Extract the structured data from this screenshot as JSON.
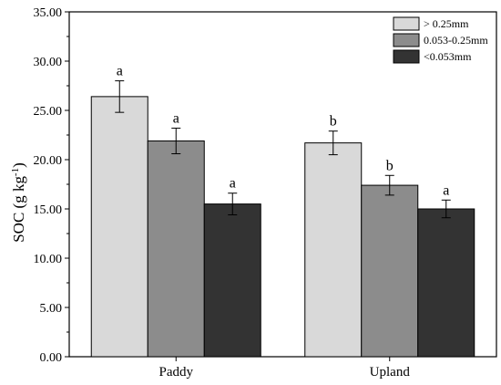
{
  "chart_data": {
    "type": "bar",
    "categories": [
      "Paddy",
      "Upland"
    ],
    "series": [
      {
        "name": "> 0.25mm",
        "color": "#d9d9d9",
        "values": [
          26.4,
          21.7
        ],
        "errors": [
          1.6,
          1.2
        ],
        "letters": [
          "a",
          "b"
        ]
      },
      {
        "name": "0.053-0.25mm",
        "color": "#8c8c8c",
        "values": [
          21.9,
          17.4
        ],
        "errors": [
          1.3,
          1.0
        ],
        "letters": [
          "a",
          "b"
        ]
      },
      {
        "name": "<0.053mm",
        "color": "#333333",
        "values": [
          15.5,
          15.0
        ],
        "errors": [
          1.1,
          0.9
        ],
        "letters": [
          "a",
          "a"
        ]
      }
    ],
    "ylabel": "SOC (g kg",
    "ylabel_sup": "-1",
    "ylabel_end": ")",
    "ylim": [
      0,
      35
    ],
    "yticks": [
      "0.00",
      "5.00",
      "10.00",
      "15.00",
      "20.00",
      "25.00",
      "30.00",
      "35.00"
    ],
    "legend_position": "top-right",
    "grid": false
  }
}
